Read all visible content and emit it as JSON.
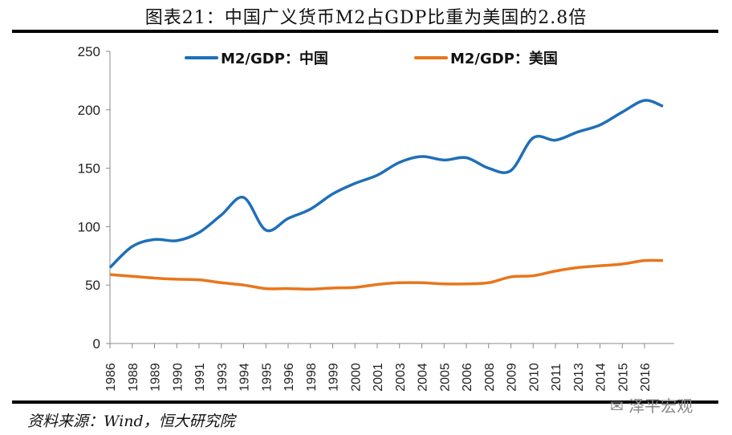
{
  "title": "图表21：中国广义货币M2占GDP比重为美国的2.8倍",
  "source": "资料来源：Wind，恒大研究院",
  "watermark": "泽平宏观",
  "chart_data": {
    "type": "line",
    "categories": [
      "1986",
      "1988",
      "1989",
      "1990",
      "1991",
      "1993",
      "1994",
      "1995",
      "1996",
      "1998",
      "1999",
      "2000",
      "2001",
      "2003",
      "2004",
      "2005",
      "2006",
      "2008",
      "2009",
      "2010",
      "2011",
      "2013",
      "2014",
      "2015",
      "2016",
      ""
    ],
    "ylim": [
      0,
      250
    ],
    "yticks": [
      0,
      50,
      100,
      150,
      200,
      250
    ],
    "grid": false,
    "legend": "top",
    "series": [
      {
        "name": "M2/GDP：中国",
        "color": "#1f6fb8",
        "values": [
          65,
          83,
          89,
          88,
          95,
          110,
          125,
          97,
          107,
          115,
          128,
          137,
          144,
          155,
          160,
          157,
          159,
          150,
          148,
          176,
          174,
          181,
          187,
          198,
          208,
          203
        ]
      },
      {
        "name": "M2/GDP：美国",
        "color": "#e8761c",
        "values": [
          59,
          57.5,
          56,
          55,
          54.5,
          52,
          50,
          47,
          47,
          46.5,
          47.5,
          48,
          50.5,
          52,
          52,
          51,
          51,
          52,
          57,
          58,
          62,
          65,
          66.5,
          68,
          71,
          71
        ]
      }
    ]
  }
}
